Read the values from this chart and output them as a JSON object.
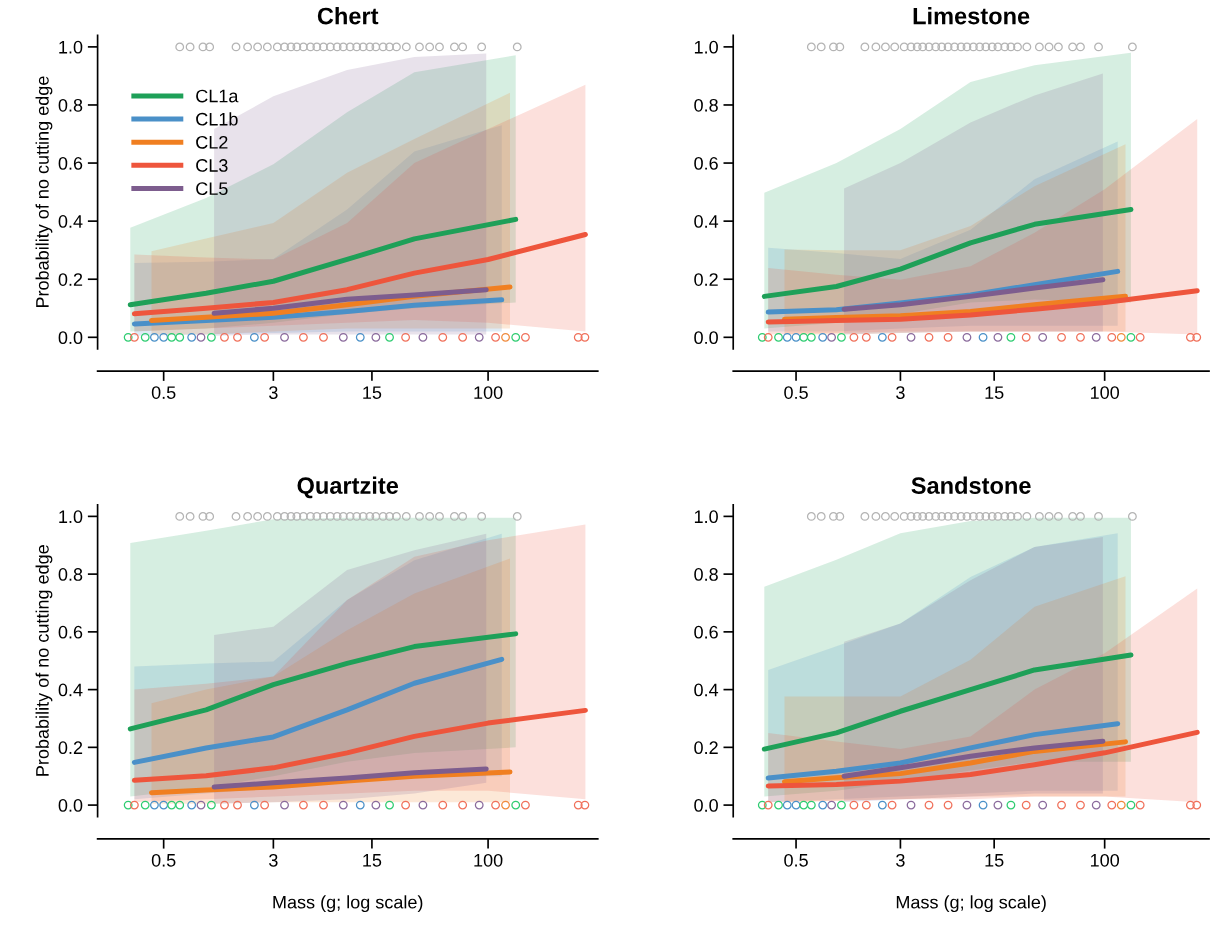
{
  "chart_data": [
    {
      "type": "line",
      "title": "Chert",
      "ylabel": "Probability of no cutting edge",
      "log": "x",
      "xlim": [
        0.17,
        600
      ],
      "xticks": [
        0.5,
        3,
        15,
        100
      ],
      "ylim": [
        -0.04,
        1.04
      ],
      "yticks": [
        {
          "value": 0,
          "label": "0.0"
        },
        {
          "value": 0.2,
          "label": "0.2"
        },
        {
          "value": 0.4,
          "label": "0.4"
        },
        {
          "value": 0.6,
          "label": "0.6"
        },
        {
          "value": 0.8,
          "label": "0.8"
        },
        {
          "value": 1,
          "label": "1.0"
        }
      ],
      "grid": false,
      "legend": "top left",
      "series": [
        {
          "type": "scatter",
          "marker": "circle",
          "color": "#b4b4b4",
          "x": [
            0.65,
            0.77,
            0.95,
            1.06,
            1.63,
            1.97,
            2.32,
            2.72,
            3.2,
            3.6,
            4,
            4.4,
            4.9,
            5.5,
            6.1,
            6.8,
            7.6,
            8.5,
            9.4,
            10.5,
            11.7,
            13,
            14.5,
            16,
            18,
            20,
            22.4,
            26.3,
            32.6,
            38.5,
            45.2,
            57.7,
            66,
            90,
            161
          ],
          "values": [
            1,
            1,
            1,
            1,
            1,
            1,
            1,
            1,
            1,
            1,
            1,
            1,
            1,
            1,
            1,
            1,
            1,
            1,
            1,
            1,
            1,
            1,
            1,
            1,
            1,
            1,
            1,
            1,
            1,
            1,
            1,
            1,
            1,
            1,
            1
          ]
        },
        {
          "type": "scatter",
          "marker": "circle",
          "x": [
            0.28,
            0.31,
            0.37,
            0.43,
            0.5,
            0.57,
            0.65,
            0.79,
            0.92,
            1.09,
            1.35,
            1.67,
            2.2,
            2.6,
            3.6,
            4.9,
            6.8,
            9.4,
            12.4,
            16,
            20,
            26,
            34.5,
            47.7,
            66,
            86.5,
            113,
            133,
            157,
            184,
            436,
            486
          ],
          "values": [
            0,
            0,
            0,
            0,
            0,
            0,
            0,
            0,
            0,
            0,
            0,
            0,
            0,
            0,
            0,
            0,
            0,
            0,
            0,
            0,
            0,
            0,
            0,
            0,
            0,
            0,
            0,
            0,
            0,
            0,
            0,
            0
          ],
          "colors": [
            "#2ecc71",
            "#f0705a",
            "#2ecc71",
            "#4a90c8",
            "#4a90c8",
            "#2ecc71",
            "#2ecc71",
            "#4a90c8",
            "#8a6a9c",
            "#2ecc71",
            "#f0705a",
            "#f0705a",
            "#4a90c8",
            "#f0705a",
            "#8a6a9c",
            "#f0705a",
            "#f0705a",
            "#8a6a9c",
            "#4a90c8",
            "#8a6a9c",
            "#2ecc71",
            "#f0705a",
            "#8a6a9c",
            "#f0705a",
            "#f0705a",
            "#8a6a9c",
            "#f0705a",
            "#f08a3c",
            "#2ecc71",
            "#f0705a",
            "#f0705a",
            "#f0705a"
          ]
        },
        {
          "name": "CL1a",
          "color": "#1ea058",
          "x": [
            0.29,
            1,
            3,
            10,
            30,
            157
          ],
          "values": [
            0.112,
            0.152,
            0.193,
            0.268,
            0.339,
            0.406
          ],
          "lower": [
            0.02,
            0.03,
            0.05,
            0.08,
            0.1,
            0.12
          ],
          "upper": [
            0.377,
            0.48,
            0.596,
            0.775,
            0.913,
            0.971
          ]
        },
        {
          "name": "CL1b",
          "color": "#4a90c8",
          "x": [
            0.31,
            1,
            3,
            10,
            30,
            125
          ],
          "values": [
            0.046,
            0.058,
            0.069,
            0.089,
            0.11,
            0.129
          ],
          "lower": [
            0.005,
            0.01,
            0.015,
            0.02,
            0.02,
            0.02
          ],
          "upper": [
            0.256,
            0.26,
            0.27,
            0.44,
            0.64,
            0.73
          ]
        },
        {
          "name": "CL2",
          "color": "#f07f21",
          "x": [
            0.41,
            1,
            3,
            10,
            30,
            143
          ],
          "values": [
            0.058,
            0.069,
            0.083,
            0.112,
            0.141,
            0.173
          ],
          "lower": [
            0.01,
            0.01,
            0.02,
            0.03,
            0.03,
            0.03
          ],
          "upper": [
            0.296,
            0.34,
            0.394,
            0.567,
            0.683,
            0.842
          ]
        },
        {
          "name": "CL3",
          "color": "#ee553c",
          "x": [
            0.31,
            1,
            3,
            10,
            30,
            100,
            490
          ],
          "values": [
            0.081,
            0.1,
            0.12,
            0.164,
            0.221,
            0.268,
            0.354
          ],
          "lower": [
            0.02,
            0.03,
            0.04,
            0.05,
            0.06,
            0.05,
            0.02
          ],
          "upper": [
            0.285,
            0.275,
            0.268,
            0.394,
            0.6,
            0.717,
            0.87
          ]
        },
        {
          "name": "CL5",
          "color": "#7d5d8e",
          "x": [
            1.14,
            3,
            10,
            30,
            97
          ],
          "values": [
            0.083,
            0.1,
            0.131,
            0.146,
            0.164
          ],
          "lower": [
            0.005,
            0.01,
            0.01,
            0.01,
            0.01
          ],
          "upper": [
            0.717,
            0.83,
            0.92,
            0.965,
            0.977
          ]
        }
      ]
    },
    {
      "type": "line",
      "title": "Limestone",
      "log": "x",
      "xlim": [
        0.17,
        600
      ],
      "xticks": [
        0.5,
        3,
        15,
        100
      ],
      "ylim": [
        -0.04,
        1.04
      ],
      "yticks": [
        {
          "value": 0,
          "label": "0.0"
        },
        {
          "value": 0.2,
          "label": "0.2"
        },
        {
          "value": 0.4,
          "label": "0.4"
        },
        {
          "value": 0.6,
          "label": "0.6"
        },
        {
          "value": 0.8,
          "label": "0.8"
        },
        {
          "value": 1,
          "label": "1.0"
        }
      ],
      "grid": false,
      "series": [
        {
          "type": "scatter",
          "marker": "circle",
          "color": "#b4b4b4",
          "x": [
            0.65,
            0.77,
            0.95,
            1.06,
            1.63,
            1.97,
            2.32,
            2.72,
            3.2,
            3.6,
            4,
            4.4,
            4.9,
            5.5,
            6.1,
            6.8,
            7.6,
            8.5,
            9.4,
            10.5,
            11.7,
            13,
            14.5,
            16,
            18,
            20,
            22.4,
            26.3,
            32.6,
            38.5,
            45.2,
            57.7,
            66,
            90,
            161
          ],
          "values": [
            1,
            1,
            1,
            1,
            1,
            1,
            1,
            1,
            1,
            1,
            1,
            1,
            1,
            1,
            1,
            1,
            1,
            1,
            1,
            1,
            1,
            1,
            1,
            1,
            1,
            1,
            1,
            1,
            1,
            1,
            1,
            1,
            1,
            1,
            1
          ]
        },
        {
          "type": "scatter",
          "marker": "circle",
          "x": [
            0.28,
            0.31,
            0.37,
            0.43,
            0.5,
            0.57,
            0.65,
            0.79,
            0.92,
            1.09,
            1.35,
            1.67,
            2.2,
            2.6,
            3.6,
            4.9,
            6.8,
            9.4,
            12.4,
            16,
            20,
            26,
            34.5,
            47.7,
            66,
            86.5,
            113,
            133,
            157,
            184,
            436,
            486
          ],
          "values": [
            0,
            0,
            0,
            0,
            0,
            0,
            0,
            0,
            0,
            0,
            0,
            0,
            0,
            0,
            0,
            0,
            0,
            0,
            0,
            0,
            0,
            0,
            0,
            0,
            0,
            0,
            0,
            0,
            0,
            0,
            0,
            0
          ],
          "colors": [
            "#2ecc71",
            "#f0705a",
            "#2ecc71",
            "#4a90c8",
            "#4a90c8",
            "#2ecc71",
            "#2ecc71",
            "#4a90c8",
            "#8a6a9c",
            "#2ecc71",
            "#f0705a",
            "#f0705a",
            "#4a90c8",
            "#f0705a",
            "#8a6a9c",
            "#f0705a",
            "#f0705a",
            "#8a6a9c",
            "#4a90c8",
            "#8a6a9c",
            "#2ecc71",
            "#f0705a",
            "#8a6a9c",
            "#f0705a",
            "#f0705a",
            "#8a6a9c",
            "#f0705a",
            "#f08a3c",
            "#2ecc71",
            "#f0705a",
            "#f0705a",
            "#f0705a"
          ]
        },
        {
          "color": "#1ea058",
          "x": [
            0.29,
            1,
            3,
            10,
            30,
            157
          ],
          "values": [
            0.141,
            0.175,
            0.235,
            0.325,
            0.389,
            0.44
          ],
          "lower": [
            0.03,
            0.05,
            0.08,
            0.12,
            0.13,
            0.12
          ],
          "upper": [
            0.498,
            0.6,
            0.717,
            0.879,
            0.937,
            0.98
          ]
        },
        {
          "color": "#4a90c8",
          "x": [
            0.31,
            1,
            3,
            10,
            30,
            125
          ],
          "values": [
            0.087,
            0.095,
            0.118,
            0.146,
            0.181,
            0.227
          ],
          "lower": [
            0.02,
            0.02,
            0.03,
            0.04,
            0.04,
            0.04
          ],
          "upper": [
            0.308,
            0.29,
            0.27,
            0.37,
            0.544,
            0.674
          ]
        },
        {
          "color": "#f07f21",
          "x": [
            0.41,
            1,
            3,
            10,
            30,
            143
          ],
          "values": [
            0.062,
            0.068,
            0.074,
            0.089,
            0.112,
            0.141
          ],
          "lower": [
            0.01,
            0.01,
            0.015,
            0.02,
            0.02,
            0.02
          ],
          "upper": [
            0.302,
            0.3,
            0.3,
            0.383,
            0.52,
            0.665
          ]
        },
        {
          "color": "#ee553c",
          "x": [
            0.31,
            1,
            3,
            10,
            30,
            100,
            490
          ],
          "values": [
            0.053,
            0.058,
            0.062,
            0.077,
            0.097,
            0.12,
            0.16
          ],
          "lower": [
            0.01,
            0.015,
            0.02,
            0.02,
            0.02,
            0.02,
            0.01
          ],
          "upper": [
            0.239,
            0.215,
            0.198,
            0.245,
            0.36,
            0.51,
            0.752
          ]
        },
        {
          "color": "#7d5d8e",
          "x": [
            1.14,
            3,
            10,
            30,
            97
          ],
          "values": [
            0.097,
            0.112,
            0.141,
            0.17,
            0.198
          ],
          "lower": [
            0.01,
            0.015,
            0.02,
            0.02,
            0.02
          ],
          "upper": [
            0.512,
            0.6,
            0.74,
            0.833,
            0.908
          ]
        }
      ]
    },
    {
      "type": "line",
      "title": "Quartzite",
      "xlabel": "Mass (g; log scale)",
      "ylabel": "Probability of no cutting edge",
      "log": "x",
      "xlim": [
        0.17,
        600
      ],
      "xticks": [
        0.5,
        3,
        15,
        100
      ],
      "ylim": [
        -0.04,
        1.04
      ],
      "yticks": [
        {
          "value": 0,
          "label": "0.0"
        },
        {
          "value": 0.2,
          "label": "0.2"
        },
        {
          "value": 0.4,
          "label": "0.4"
        },
        {
          "value": 0.6,
          "label": "0.6"
        },
        {
          "value": 0.8,
          "label": "0.8"
        },
        {
          "value": 1,
          "label": "1.0"
        }
      ],
      "grid": false,
      "series": [
        {
          "type": "scatter",
          "marker": "circle",
          "color": "#b4b4b4",
          "x": [
            0.65,
            0.77,
            0.95,
            1.06,
            1.63,
            1.97,
            2.32,
            2.72,
            3.2,
            3.6,
            4,
            4.4,
            4.9,
            5.5,
            6.1,
            6.8,
            7.6,
            8.5,
            9.4,
            10.5,
            11.7,
            13,
            14.5,
            16,
            18,
            20,
            22.4,
            26.3,
            32.6,
            38.5,
            45.2,
            57.7,
            66,
            90,
            161
          ],
          "values": [
            1,
            1,
            1,
            1,
            1,
            1,
            1,
            1,
            1,
            1,
            1,
            1,
            1,
            1,
            1,
            1,
            1,
            1,
            1,
            1,
            1,
            1,
            1,
            1,
            1,
            1,
            1,
            1,
            1,
            1,
            1,
            1,
            1,
            1,
            1
          ]
        },
        {
          "type": "scatter",
          "marker": "circle",
          "x": [
            0.28,
            0.31,
            0.37,
            0.43,
            0.5,
            0.57,
            0.65,
            0.79,
            0.92,
            1.09,
            1.35,
            1.67,
            2.2,
            2.6,
            3.6,
            4.9,
            6.8,
            9.4,
            12.4,
            16,
            20,
            26,
            34.5,
            47.7,
            66,
            86.5,
            113,
            133,
            157,
            184,
            436,
            486
          ],
          "values": [
            0,
            0,
            0,
            0,
            0,
            0,
            0,
            0,
            0,
            0,
            0,
            0,
            0,
            0,
            0,
            0,
            0,
            0,
            0,
            0,
            0,
            0,
            0,
            0,
            0,
            0,
            0,
            0,
            0,
            0,
            0,
            0
          ],
          "colors": [
            "#2ecc71",
            "#f0705a",
            "#2ecc71",
            "#4a90c8",
            "#4a90c8",
            "#2ecc71",
            "#2ecc71",
            "#4a90c8",
            "#8a6a9c",
            "#2ecc71",
            "#f0705a",
            "#f0705a",
            "#4a90c8",
            "#f0705a",
            "#8a6a9c",
            "#f0705a",
            "#f0705a",
            "#8a6a9c",
            "#4a90c8",
            "#8a6a9c",
            "#2ecc71",
            "#f0705a",
            "#8a6a9c",
            "#f0705a",
            "#f0705a",
            "#8a6a9c",
            "#f0705a",
            "#f08a3c",
            "#2ecc71",
            "#f0705a",
            "#f0705a",
            "#f0705a"
          ]
        },
        {
          "color": "#1ea058",
          "x": [
            0.29,
            1,
            3,
            10,
            30,
            157
          ],
          "values": [
            0.264,
            0.33,
            0.417,
            0.491,
            0.549,
            0.593
          ],
          "lower": [
            0.03,
            0.06,
            0.1,
            0.15,
            0.18,
            0.2
          ],
          "upper": [
            0.908,
            0.95,
            0.99,
            0.995,
            0.995,
            0.995
          ]
        },
        {
          "color": "#4a90c8",
          "x": [
            0.31,
            1,
            3,
            10,
            30,
            125
          ],
          "values": [
            0.148,
            0.198,
            0.236,
            0.33,
            0.422,
            0.505
          ],
          "lower": [
            0.02,
            0.04,
            0.06,
            0.08,
            0.1,
            0.1
          ],
          "upper": [
            0.48,
            0.49,
            0.497,
            0.71,
            0.848,
            0.94
          ]
        },
        {
          "color": "#f07f21",
          "x": [
            0.41,
            1,
            3,
            10,
            30,
            143
          ],
          "values": [
            0.043,
            0.052,
            0.063,
            0.083,
            0.1,
            0.115
          ],
          "lower": [
            0.005,
            0.005,
            0.01,
            0.01,
            0.01,
            0.01
          ],
          "upper": [
            0.353,
            0.4,
            0.445,
            0.606,
            0.733,
            0.854
          ]
        },
        {
          "color": "#ee553c",
          "x": [
            0.31,
            1,
            3,
            10,
            30,
            100,
            490
          ],
          "values": [
            0.086,
            0.102,
            0.129,
            0.181,
            0.238,
            0.284,
            0.328
          ],
          "lower": [
            0.01,
            0.02,
            0.03,
            0.04,
            0.05,
            0.05,
            0.02
          ],
          "upper": [
            0.4,
            0.42,
            0.445,
            0.71,
            0.86,
            0.917,
            0.972
          ]
        },
        {
          "color": "#7d5d8e",
          "x": [
            1.14,
            3,
            10,
            30,
            97
          ],
          "values": [
            0.063,
            0.077,
            0.094,
            0.112,
            0.125
          ],
          "lower": [
            0.005,
            0.01,
            0.02,
            0.04,
            0.077
          ],
          "upper": [
            0.589,
            0.618,
            0.814,
            0.883,
            0.94
          ]
        }
      ]
    },
    {
      "type": "line",
      "title": "Sandstone",
      "xlabel": "Mass (g; log scale)",
      "log": "x",
      "xlim": [
        0.17,
        600
      ],
      "xticks": [
        0.5,
        3,
        15,
        100
      ],
      "ylim": [
        -0.04,
        1.04
      ],
      "yticks": [
        {
          "value": 0,
          "label": "0.0"
        },
        {
          "value": 0.2,
          "label": "0.2"
        },
        {
          "value": 0.4,
          "label": "0.4"
        },
        {
          "value": 0.6,
          "label": "0.6"
        },
        {
          "value": 0.8,
          "label": "0.8"
        },
        {
          "value": 1,
          "label": "1.0"
        }
      ],
      "grid": false,
      "series": [
        {
          "type": "scatter",
          "marker": "circle",
          "color": "#b4b4b4",
          "x": [
            0.65,
            0.77,
            0.95,
            1.06,
            1.63,
            1.97,
            2.32,
            2.72,
            3.2,
            3.6,
            4,
            4.4,
            4.9,
            5.5,
            6.1,
            6.8,
            7.6,
            8.5,
            9.4,
            10.5,
            11.7,
            13,
            14.5,
            16,
            18,
            20,
            22.4,
            26.3,
            32.6,
            38.5,
            45.2,
            57.7,
            66,
            90,
            161
          ],
          "values": [
            1,
            1,
            1,
            1,
            1,
            1,
            1,
            1,
            1,
            1,
            1,
            1,
            1,
            1,
            1,
            1,
            1,
            1,
            1,
            1,
            1,
            1,
            1,
            1,
            1,
            1,
            1,
            1,
            1,
            1,
            1,
            1,
            1,
            1,
            1
          ]
        },
        {
          "type": "scatter",
          "marker": "circle",
          "x": [
            0.28,
            0.31,
            0.37,
            0.43,
            0.5,
            0.57,
            0.65,
            0.79,
            0.92,
            1.09,
            1.35,
            1.67,
            2.2,
            2.6,
            3.6,
            4.9,
            6.8,
            9.4,
            12.4,
            16,
            20,
            26,
            34.5,
            47.7,
            66,
            86.5,
            113,
            133,
            157,
            184,
            436,
            486
          ],
          "values": [
            0,
            0,
            0,
            0,
            0,
            0,
            0,
            0,
            0,
            0,
            0,
            0,
            0,
            0,
            0,
            0,
            0,
            0,
            0,
            0,
            0,
            0,
            0,
            0,
            0,
            0,
            0,
            0,
            0,
            0,
            0,
            0
          ],
          "colors": [
            "#2ecc71",
            "#f0705a",
            "#2ecc71",
            "#4a90c8",
            "#4a90c8",
            "#2ecc71",
            "#2ecc71",
            "#4a90c8",
            "#8a6a9c",
            "#2ecc71",
            "#f0705a",
            "#f0705a",
            "#4a90c8",
            "#f0705a",
            "#8a6a9c",
            "#f0705a",
            "#f0705a",
            "#8a6a9c",
            "#4a90c8",
            "#8a6a9c",
            "#2ecc71",
            "#f0705a",
            "#8a6a9c",
            "#f0705a",
            "#f0705a",
            "#8a6a9c",
            "#f0705a",
            "#f08a3c",
            "#2ecc71",
            "#f0705a",
            "#f0705a",
            "#f0705a"
          ]
        },
        {
          "color": "#1ea058",
          "x": [
            0.29,
            1,
            3,
            10,
            30,
            157
          ],
          "values": [
            0.194,
            0.25,
            0.325,
            0.4,
            0.468,
            0.52
          ],
          "lower": [
            0.03,
            0.05,
            0.08,
            0.12,
            0.15,
            0.15
          ],
          "upper": [
            0.756,
            0.85,
            0.942,
            0.984,
            0.995,
            0.995
          ]
        },
        {
          "color": "#4a90c8",
          "x": [
            0.31,
            1,
            3,
            10,
            30,
            125
          ],
          "values": [
            0.094,
            0.117,
            0.146,
            0.198,
            0.244,
            0.282
          ],
          "lower": [
            0.01,
            0.02,
            0.03,
            0.04,
            0.05,
            0.05
          ],
          "upper": [
            0.468,
            0.55,
            0.629,
            0.79,
            0.894,
            0.942
          ]
        },
        {
          "color": "#f07f21",
          "x": [
            0.41,
            1,
            3,
            10,
            30,
            143
          ],
          "values": [
            0.081,
            0.095,
            0.109,
            0.146,
            0.186,
            0.219
          ],
          "lower": [
            0.01,
            0.015,
            0.02,
            0.03,
            0.03,
            0.03
          ],
          "upper": [
            0.376,
            0.376,
            0.376,
            0.503,
            0.687,
            0.793
          ]
        },
        {
          "color": "#ee553c",
          "x": [
            0.31,
            1,
            3,
            10,
            30,
            100,
            490
          ],
          "values": [
            0.066,
            0.071,
            0.083,
            0.106,
            0.14,
            0.181,
            0.252
          ],
          "lower": [
            0.01,
            0.015,
            0.02,
            0.02,
            0.03,
            0.03,
            0.01
          ],
          "upper": [
            0.25,
            0.22,
            0.194,
            0.238,
            0.4,
            0.526,
            0.75
          ]
        },
        {
          "color": "#7d5d8e",
          "x": [
            1.14,
            3,
            10,
            30,
            97
          ],
          "values": [
            0.1,
            0.129,
            0.169,
            0.198,
            0.221
          ],
          "lower": [
            0.01,
            0.02,
            0.03,
            0.04,
            0.04
          ],
          "upper": [
            0.566,
            0.629,
            0.779,
            0.894,
            0.929
          ]
        }
      ]
    }
  ]
}
